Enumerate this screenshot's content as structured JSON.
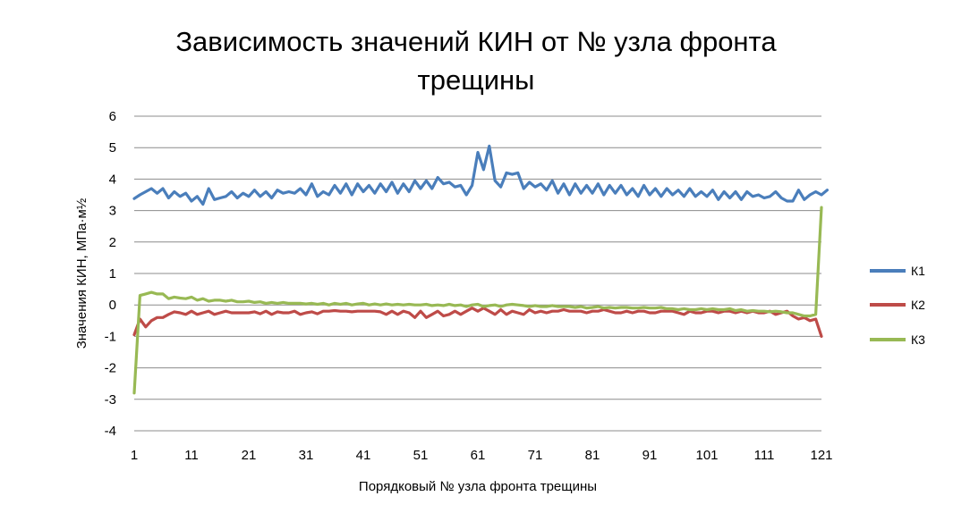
{
  "chart_data": {
    "type": "line",
    "title_lines": [
      "Зависимость значений КИН от № узла фронта",
      "трещины"
    ],
    "xlabel": "Порядковый № узла фронта трещины",
    "ylabel": "Значения КИН, МПа·м½",
    "ylim": [
      -4,
      6
    ],
    "yticks": [
      6,
      5,
      4,
      3,
      2,
      1,
      0,
      -1,
      -2,
      -3,
      -4
    ],
    "xlim": [
      1,
      121
    ],
    "xticks": [
      1,
      11,
      21,
      31,
      41,
      51,
      61,
      71,
      81,
      91,
      101,
      111,
      121
    ],
    "grid": true,
    "legend_position": "right",
    "series": [
      {
        "name": "К1",
        "color": "#4a7ebb",
        "values": [
          3.38,
          3.5,
          3.6,
          3.7,
          3.55,
          3.7,
          3.4,
          3.6,
          3.45,
          3.55,
          3.3,
          3.45,
          3.2,
          3.7,
          3.35,
          3.4,
          3.45,
          3.6,
          3.4,
          3.55,
          3.45,
          3.65,
          3.45,
          3.6,
          3.4,
          3.65,
          3.55,
          3.6,
          3.55,
          3.7,
          3.5,
          3.85,
          3.45,
          3.6,
          3.5,
          3.8,
          3.55,
          3.85,
          3.5,
          3.85,
          3.6,
          3.8,
          3.55,
          3.85,
          3.6,
          3.9,
          3.55,
          3.85,
          3.6,
          3.95,
          3.7,
          3.95,
          3.7,
          4.05,
          3.85,
          3.9,
          3.75,
          3.8,
          3.5,
          3.8,
          4.85,
          4.3,
          5.05,
          3.95,
          3.75,
          4.2,
          4.15,
          4.2,
          3.7,
          3.9,
          3.75,
          3.85,
          3.65,
          3.95,
          3.55,
          3.85,
          3.5,
          3.85,
          3.55,
          3.8,
          3.55,
          3.85,
          3.5,
          3.8,
          3.55,
          3.8,
          3.5,
          3.7,
          3.45,
          3.8,
          3.5,
          3.7,
          3.45,
          3.7,
          3.5,
          3.65,
          3.45,
          3.7,
          3.45,
          3.6,
          3.45,
          3.65,
          3.35,
          3.6,
          3.4,
          3.6,
          3.35,
          3.6,
          3.45,
          3.5,
          3.4,
          3.45,
          3.6,
          3.4,
          3.3,
          3.3,
          3.65,
          3.35,
          3.5,
          3.6,
          3.5,
          3.65
        ]
      },
      {
        "name": "К2",
        "color": "#be4b48",
        "values": [
          -0.95,
          -0.45,
          -0.7,
          -0.5,
          -0.4,
          -0.4,
          -0.3,
          -0.22,
          -0.25,
          -0.3,
          -0.2,
          -0.3,
          -0.25,
          -0.2,
          -0.3,
          -0.25,
          -0.2,
          -0.25,
          -0.25,
          -0.25,
          -0.25,
          -0.22,
          -0.28,
          -0.2,
          -0.3,
          -0.22,
          -0.25,
          -0.25,
          -0.2,
          -0.3,
          -0.25,
          -0.22,
          -0.28,
          -0.2,
          -0.2,
          -0.18,
          -0.2,
          -0.2,
          -0.22,
          -0.2,
          -0.2,
          -0.2,
          -0.2,
          -0.22,
          -0.3,
          -0.2,
          -0.3,
          -0.2,
          -0.25,
          -0.4,
          -0.2,
          -0.4,
          -0.3,
          -0.2,
          -0.35,
          -0.3,
          -0.2,
          -0.3,
          -0.2,
          -0.1,
          -0.2,
          -0.1,
          -0.2,
          -0.3,
          -0.15,
          -0.3,
          -0.2,
          -0.25,
          -0.3,
          -0.15,
          -0.25,
          -0.2,
          -0.25,
          -0.2,
          -0.2,
          -0.15,
          -0.2,
          -0.2,
          -0.2,
          -0.25,
          -0.2,
          -0.2,
          -0.15,
          -0.2,
          -0.25,
          -0.25,
          -0.2,
          -0.25,
          -0.2,
          -0.2,
          -0.25,
          -0.25,
          -0.2,
          -0.2,
          -0.2,
          -0.25,
          -0.3,
          -0.2,
          -0.25,
          -0.25,
          -0.2,
          -0.2,
          -0.25,
          -0.2,
          -0.2,
          -0.25,
          -0.2,
          -0.25,
          -0.2,
          -0.25,
          -0.25,
          -0.2,
          -0.3,
          -0.25,
          -0.2,
          -0.35,
          -0.45,
          -0.4,
          -0.5,
          -0.45,
          -1.0
        ]
      },
      {
        "name": "К3",
        "color": "#98b954",
        "values": [
          -2.8,
          0.3,
          0.35,
          0.4,
          0.35,
          0.35,
          0.2,
          0.25,
          0.22,
          0.2,
          0.25,
          0.15,
          0.2,
          0.12,
          0.15,
          0.15,
          0.12,
          0.15,
          0.1,
          0.1,
          0.12,
          0.08,
          0.1,
          0.05,
          0.08,
          0.05,
          0.08,
          0.05,
          0.05,
          0.05,
          0.03,
          0.05,
          0.02,
          0.05,
          0.0,
          0.05,
          0.02,
          0.05,
          0.0,
          0.03,
          0.05,
          0.0,
          0.03,
          0.0,
          0.03,
          0.0,
          0.02,
          0.0,
          0.02,
          0.0,
          0.0,
          0.02,
          -0.02,
          0.0,
          -0.02,
          0.02,
          -0.02,
          0.0,
          -0.05,
          0.0,
          0.02,
          -0.05,
          -0.02,
          0.0,
          -0.05,
          0.0,
          0.02,
          0.0,
          -0.02,
          -0.05,
          -0.02,
          -0.05,
          -0.05,
          -0.02,
          -0.05,
          -0.05,
          -0.05,
          -0.08,
          -0.05,
          -0.1,
          -0.08,
          -0.05,
          -0.1,
          -0.08,
          -0.1,
          -0.08,
          -0.08,
          -0.1,
          -0.1,
          -0.08,
          -0.1,
          -0.1,
          -0.08,
          -0.12,
          -0.12,
          -0.15,
          -0.12,
          -0.15,
          -0.15,
          -0.12,
          -0.15,
          -0.12,
          -0.15,
          -0.15,
          -0.12,
          -0.18,
          -0.15,
          -0.2,
          -0.18,
          -0.2,
          -0.2,
          -0.22,
          -0.2,
          -0.22,
          -0.25,
          -0.25,
          -0.3,
          -0.35,
          -0.35,
          -0.3,
          3.1
        ]
      }
    ]
  }
}
